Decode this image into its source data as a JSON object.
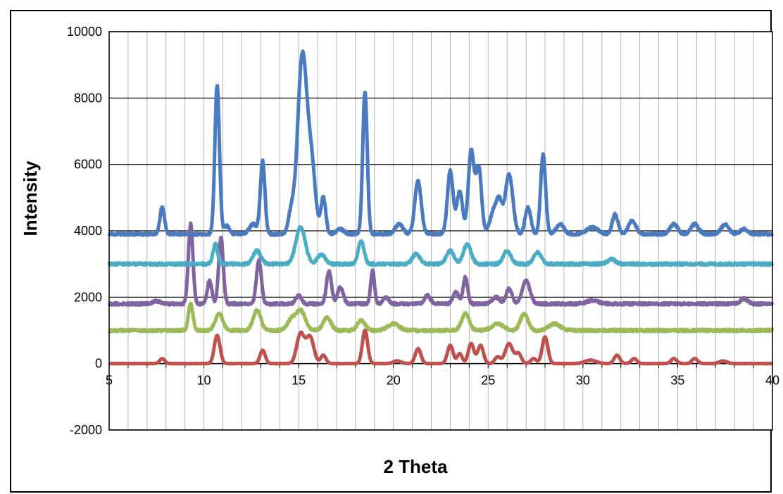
{
  "chart_data": {
    "type": "line",
    "title": "",
    "xlabel": "2 Theta",
    "ylabel": "Intensity",
    "xlim": [
      5,
      40
    ],
    "ylim": [
      -2000,
      10000
    ],
    "x_ticks": [
      5,
      10,
      15,
      20,
      25,
      30,
      35,
      40
    ],
    "y_ticks": [
      -2000,
      0,
      2000,
      4000,
      6000,
      8000,
      10000
    ],
    "grid": {
      "major_y": true,
      "minor_x_step": 1
    },
    "legend": "none",
    "series": [
      {
        "color": "#4a7bc0",
        "baseline": 3900,
        "peaks": [
          [
            7.8,
            800,
            0.12
          ],
          [
            10.7,
            4500,
            0.12
          ],
          [
            11.2,
            250,
            0.15
          ],
          [
            12.6,
            300,
            0.2
          ],
          [
            13.1,
            2200,
            0.12
          ],
          [
            14.6,
            600,
            0.15
          ],
          [
            15.2,
            5400,
            0.25
          ],
          [
            15.7,
            1800,
            0.2
          ],
          [
            16.3,
            1100,
            0.13
          ],
          [
            17.2,
            150,
            0.2
          ],
          [
            18.5,
            4300,
            0.12
          ],
          [
            20.3,
            300,
            0.2
          ],
          [
            21.3,
            1600,
            0.17
          ],
          [
            23.0,
            1900,
            0.15
          ],
          [
            23.5,
            1300,
            0.15
          ],
          [
            24.1,
            2500,
            0.15
          ],
          [
            24.5,
            2000,
            0.15
          ],
          [
            25.3,
            700,
            0.2
          ],
          [
            25.6,
            800,
            0.15
          ],
          [
            26.1,
            1800,
            0.2
          ],
          [
            27.1,
            800,
            0.15
          ],
          [
            27.9,
            2400,
            0.13
          ],
          [
            28.8,
            300,
            0.2
          ],
          [
            30.5,
            200,
            0.3
          ],
          [
            31.7,
            600,
            0.15
          ],
          [
            32.6,
            400,
            0.2
          ],
          [
            34.8,
            300,
            0.2
          ],
          [
            35.9,
            300,
            0.2
          ],
          [
            37.5,
            300,
            0.2
          ],
          [
            38.5,
            150,
            0.2
          ]
        ]
      },
      {
        "color": "#4bacc6",
        "baseline": 3000,
        "peaks": [
          [
            10.6,
            600,
            0.12
          ],
          [
            12.8,
            400,
            0.2
          ],
          [
            15.1,
            1100,
            0.25
          ],
          [
            16.2,
            300,
            0.2
          ],
          [
            18.3,
            700,
            0.15
          ],
          [
            21.2,
            300,
            0.2
          ],
          [
            23.0,
            400,
            0.2
          ],
          [
            23.9,
            600,
            0.2
          ],
          [
            26.0,
            400,
            0.2
          ],
          [
            27.6,
            350,
            0.2
          ],
          [
            31.5,
            150,
            0.2
          ]
        ]
      },
      {
        "color": "#8064a2",
        "baseline": 1800,
        "peaks": [
          [
            7.5,
            80,
            0.2
          ],
          [
            9.3,
            2400,
            0.12
          ],
          [
            10.3,
            700,
            0.12
          ],
          [
            10.9,
            2000,
            0.12
          ],
          [
            12.9,
            1300,
            0.13
          ],
          [
            15.0,
            250,
            0.15
          ],
          [
            16.6,
            1000,
            0.13
          ],
          [
            17.2,
            500,
            0.15
          ],
          [
            18.9,
            1000,
            0.1
          ],
          [
            19.6,
            200,
            0.15
          ],
          [
            21.8,
            250,
            0.15
          ],
          [
            23.3,
            350,
            0.15
          ],
          [
            23.8,
            800,
            0.12
          ],
          [
            25.4,
            200,
            0.2
          ],
          [
            26.1,
            450,
            0.15
          ],
          [
            27.0,
            700,
            0.2
          ],
          [
            30.5,
            100,
            0.3
          ],
          [
            38.5,
            150,
            0.2
          ]
        ]
      },
      {
        "color": "#9bbb59",
        "baseline": 1000,
        "peaks": [
          [
            9.3,
            800,
            0.12
          ],
          [
            10.8,
            500,
            0.2
          ],
          [
            12.8,
            600,
            0.2
          ],
          [
            14.6,
            300,
            0.2
          ],
          [
            15.1,
            600,
            0.25
          ],
          [
            16.5,
            400,
            0.2
          ],
          [
            18.3,
            300,
            0.2
          ],
          [
            20.0,
            200,
            0.3
          ],
          [
            23.8,
            500,
            0.2
          ],
          [
            25.5,
            200,
            0.3
          ],
          [
            26.9,
            500,
            0.2
          ],
          [
            28.5,
            200,
            0.3
          ]
        ]
      },
      {
        "color": "#c0504d",
        "baseline": 0,
        "peaks": [
          [
            7.8,
            150,
            0.13
          ],
          [
            10.7,
            850,
            0.15
          ],
          [
            13.1,
            400,
            0.14
          ],
          [
            15.1,
            900,
            0.2
          ],
          [
            15.6,
            800,
            0.2
          ],
          [
            16.3,
            250,
            0.14
          ],
          [
            18.5,
            1000,
            0.14
          ],
          [
            20.2,
            80,
            0.2
          ],
          [
            21.3,
            450,
            0.15
          ],
          [
            23.0,
            550,
            0.15
          ],
          [
            23.5,
            300,
            0.13
          ],
          [
            24.1,
            600,
            0.15
          ],
          [
            24.6,
            550,
            0.15
          ],
          [
            25.5,
            200,
            0.15
          ],
          [
            26.1,
            600,
            0.2
          ],
          [
            26.6,
            300,
            0.15
          ],
          [
            27.4,
            150,
            0.15
          ],
          [
            28.0,
            800,
            0.15
          ],
          [
            30.4,
            100,
            0.3
          ],
          [
            31.8,
            250,
            0.15
          ],
          [
            32.7,
            150,
            0.15
          ],
          [
            34.8,
            150,
            0.15
          ],
          [
            35.9,
            150,
            0.15
          ],
          [
            37.4,
            80,
            0.2
          ]
        ]
      }
    ]
  }
}
